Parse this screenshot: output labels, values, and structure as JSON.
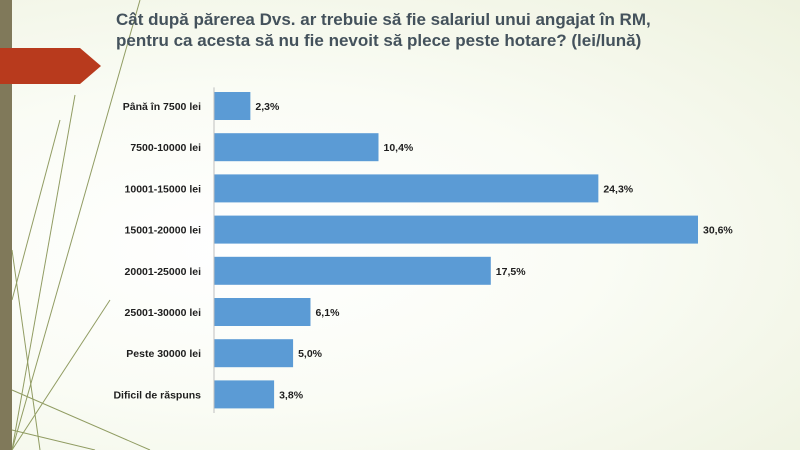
{
  "chart_data": {
    "type": "bar",
    "orientation": "horizontal",
    "title_lines": [
      "Cât după părerea Dvs. ar trebuie să fie salariul unui angajat în RM,",
      "pentru ca acesta să nu fie nevoit să plece peste hotare? (lei/lună)"
    ],
    "categories": [
      "Până în 7500  lei",
      "7500-10000 lei",
      "10001-15000 lei",
      "15001-20000 lei",
      "20001-25000 lei",
      "25001-30000 lei",
      "Peste 30000 lei",
      "Dificil de răspuns"
    ],
    "values": [
      2.3,
      10.4,
      24.3,
      30.6,
      17.5,
      6.1,
      5.0,
      3.8
    ],
    "value_labels": [
      "2,3%",
      "10,4%",
      "24,3%",
      "30,6%",
      "17,5%",
      "6,1%",
      "5,0%",
      "3,8%"
    ],
    "unit": "%",
    "xlim": [
      0,
      31
    ],
    "grid": false,
    "legend": "none",
    "bar_color": "#5b9bd5"
  },
  "decor": {
    "side_band_color": "#80795a",
    "arrow_color": "#b83a1d",
    "line_color": "#7f8c4a"
  }
}
